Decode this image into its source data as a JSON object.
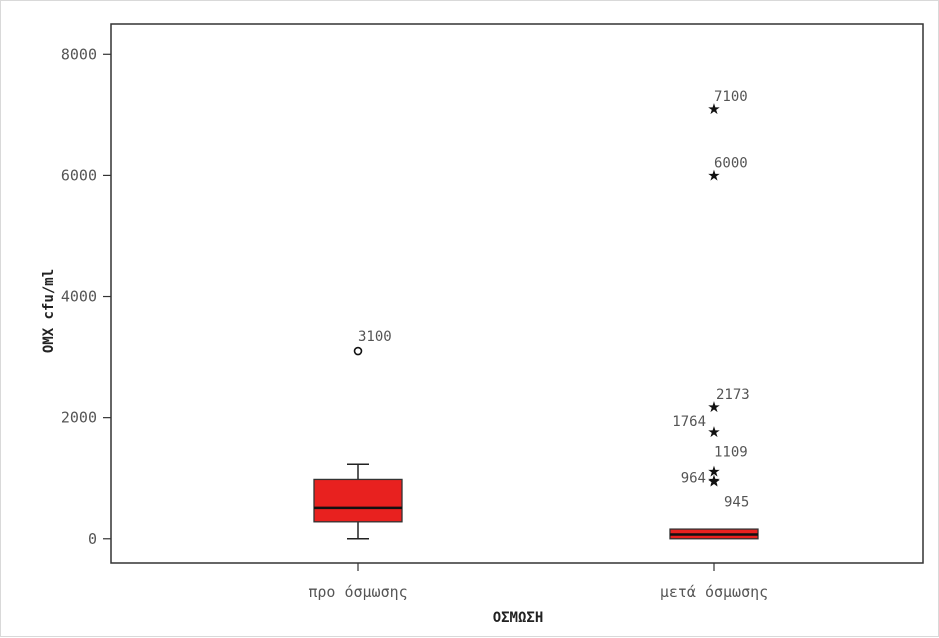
{
  "chart_data": {
    "type": "box",
    "xlabel": "ΟΣΜΩΣΗ",
    "ylabel": "ΟΜΧ cfu/ml",
    "ylim": [
      -400,
      8500
    ],
    "yticks": [
      0,
      2000,
      4000,
      6000,
      8000
    ],
    "grid": false,
    "box_color": "#e8211f",
    "categories": [
      "προ όσμωσης",
      "μετά όσμωσης"
    ],
    "boxes": [
      {
        "category": "προ όσμωσης",
        "whisker_low": 0,
        "q1": 280,
        "median": 510,
        "q3": 980,
        "whisker_high": 1230,
        "outliers": [
          {
            "value": 3100,
            "label": "3100",
            "marker": "circle"
          }
        ]
      },
      {
        "category": "μετά όσμωσης",
        "whisker_low": 0,
        "q1": 0,
        "median": 70,
        "q3": 160,
        "whisker_high": 160,
        "outliers": [
          {
            "value": 7100,
            "label": "7100",
            "marker": "star"
          },
          {
            "value": 6000,
            "label": "6000",
            "marker": "star"
          },
          {
            "value": 2173,
            "label": "2173",
            "marker": "star"
          },
          {
            "value": 1764,
            "label": "1764",
            "marker": "star"
          },
          {
            "value": 1109,
            "label": "1109",
            "marker": "star"
          },
          {
            "value": 964,
            "label": "964",
            "marker": "star"
          },
          {
            "value": 945,
            "label": "945",
            "marker": "star"
          }
        ]
      }
    ]
  }
}
